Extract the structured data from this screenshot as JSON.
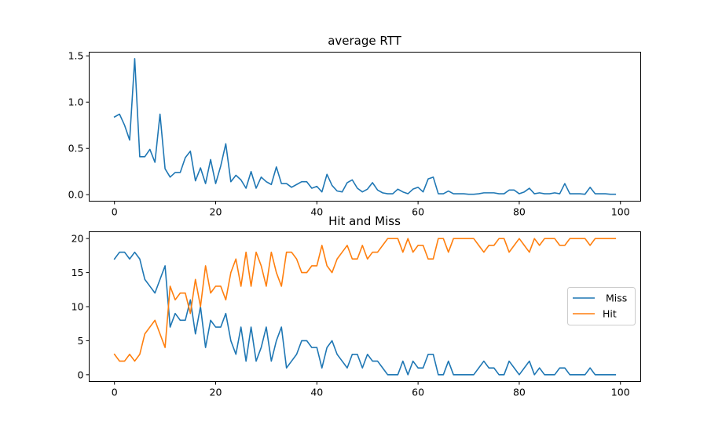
{
  "chart_data": [
    {
      "type": "line",
      "title": "average RTT",
      "xlim": [
        -5,
        104
      ],
      "ylim": [
        -0.07,
        1.54
      ],
      "xticks": [
        0,
        20,
        40,
        60,
        80,
        100
      ],
      "yticks": [
        0.0,
        0.5,
        1.0,
        1.5
      ],
      "ytick_labels": [
        "0.0",
        "0.5",
        "1.0",
        "1.5"
      ],
      "xtick_labels": [
        "0",
        "20",
        "40",
        "60",
        "80",
        "100"
      ],
      "series": [
        {
          "color": "#1f77b4",
          "values": [
            0.84,
            0.87,
            0.75,
            0.59,
            1.47,
            0.41,
            0.41,
            0.49,
            0.35,
            0.87,
            0.28,
            0.19,
            0.24,
            0.24,
            0.4,
            0.47,
            0.15,
            0.29,
            0.12,
            0.38,
            0.12,
            0.31,
            0.55,
            0.14,
            0.21,
            0.16,
            0.07,
            0.25,
            0.07,
            0.19,
            0.14,
            0.11,
            0.3,
            0.12,
            0.12,
            0.08,
            0.11,
            0.14,
            0.14,
            0.07,
            0.09,
            0.03,
            0.22,
            0.1,
            0.04,
            0.03,
            0.13,
            0.16,
            0.07,
            0.03,
            0.06,
            0.13,
            0.05,
            0.02,
            0.01,
            0.01,
            0.06,
            0.03,
            0.01,
            0.06,
            0.08,
            0.03,
            0.17,
            0.19,
            0.01,
            0.01,
            0.04,
            0.01,
            0.01,
            0.01,
            0.005,
            0.005,
            0.01,
            0.02,
            0.02,
            0.02,
            0.01,
            0.01,
            0.05,
            0.05,
            0.01,
            0.03,
            0.07,
            0.01,
            0.02,
            0.01,
            0.01,
            0.02,
            0.01,
            0.12,
            0.01,
            0.01,
            0.01,
            0.005,
            0.08,
            0.01,
            0.01,
            0.01,
            0.005,
            0.005
          ]
        }
      ]
    },
    {
      "type": "line",
      "title": "Hit and Miss",
      "xlim": [
        -5,
        104
      ],
      "ylim": [
        -1,
        21
      ],
      "xticks": [
        0,
        20,
        40,
        60,
        80,
        100
      ],
      "yticks": [
        0,
        5,
        10,
        15,
        20
      ],
      "ytick_labels": [
        "0",
        "5",
        "10",
        "15",
        "20"
      ],
      "xtick_labels": [
        "0",
        "20",
        "40",
        "60",
        "80",
        "100"
      ],
      "legend": "center-right",
      "series": [
        {
          "name": " Miss",
          "color": "#1f77b4",
          "values": [
            17,
            18,
            18,
            17,
            18,
            17,
            14,
            13,
            12,
            14,
            16,
            7,
            9,
            8,
            8,
            11,
            6,
            10,
            4,
            8,
            7,
            7,
            9,
            5,
            3,
            7,
            2,
            7,
            2,
            4,
            7,
            2,
            5,
            7,
            1,
            2,
            3,
            5,
            5,
            4,
            4,
            1,
            4,
            5,
            3,
            2,
            1,
            3,
            3,
            1,
            3,
            2,
            2,
            1,
            0,
            0,
            0,
            2,
            0,
            2,
            1,
            1,
            3,
            3,
            0,
            0,
            2,
            0,
            0,
            0,
            0,
            0,
            1,
            2,
            1,
            1,
            0,
            0,
            2,
            1,
            0,
            1,
            2,
            0,
            1,
            0,
            0,
            0,
            1,
            1,
            0,
            0,
            0,
            0,
            1,
            0,
            0,
            0,
            0,
            0
          ]
        },
        {
          "name": "Hit",
          "color": "#ff7f0e",
          "values": [
            3,
            2,
            2,
            3,
            2,
            3,
            6,
            7,
            8,
            6,
            4,
            13,
            11,
            12,
            12,
            9,
            14,
            10,
            16,
            12,
            13,
            13,
            11,
            15,
            17,
            13,
            18,
            13,
            18,
            16,
            13,
            18,
            15,
            13,
            18,
            18,
            17,
            15,
            15,
            16,
            16,
            19,
            16,
            15,
            17,
            18,
            19,
            17,
            17,
            19,
            17,
            18,
            18,
            19,
            20,
            20,
            20,
            18,
            20,
            18,
            19,
            19,
            17,
            17,
            20,
            20,
            18,
            20,
            20,
            20,
            20,
            20,
            19,
            18,
            19,
            19,
            20,
            20,
            18,
            19,
            20,
            19,
            18,
            20,
            19,
            20,
            20,
            20,
            19,
            19,
            20,
            20,
            20,
            20,
            19,
            20,
            20,
            20,
            20,
            20
          ]
        }
      ]
    }
  ]
}
